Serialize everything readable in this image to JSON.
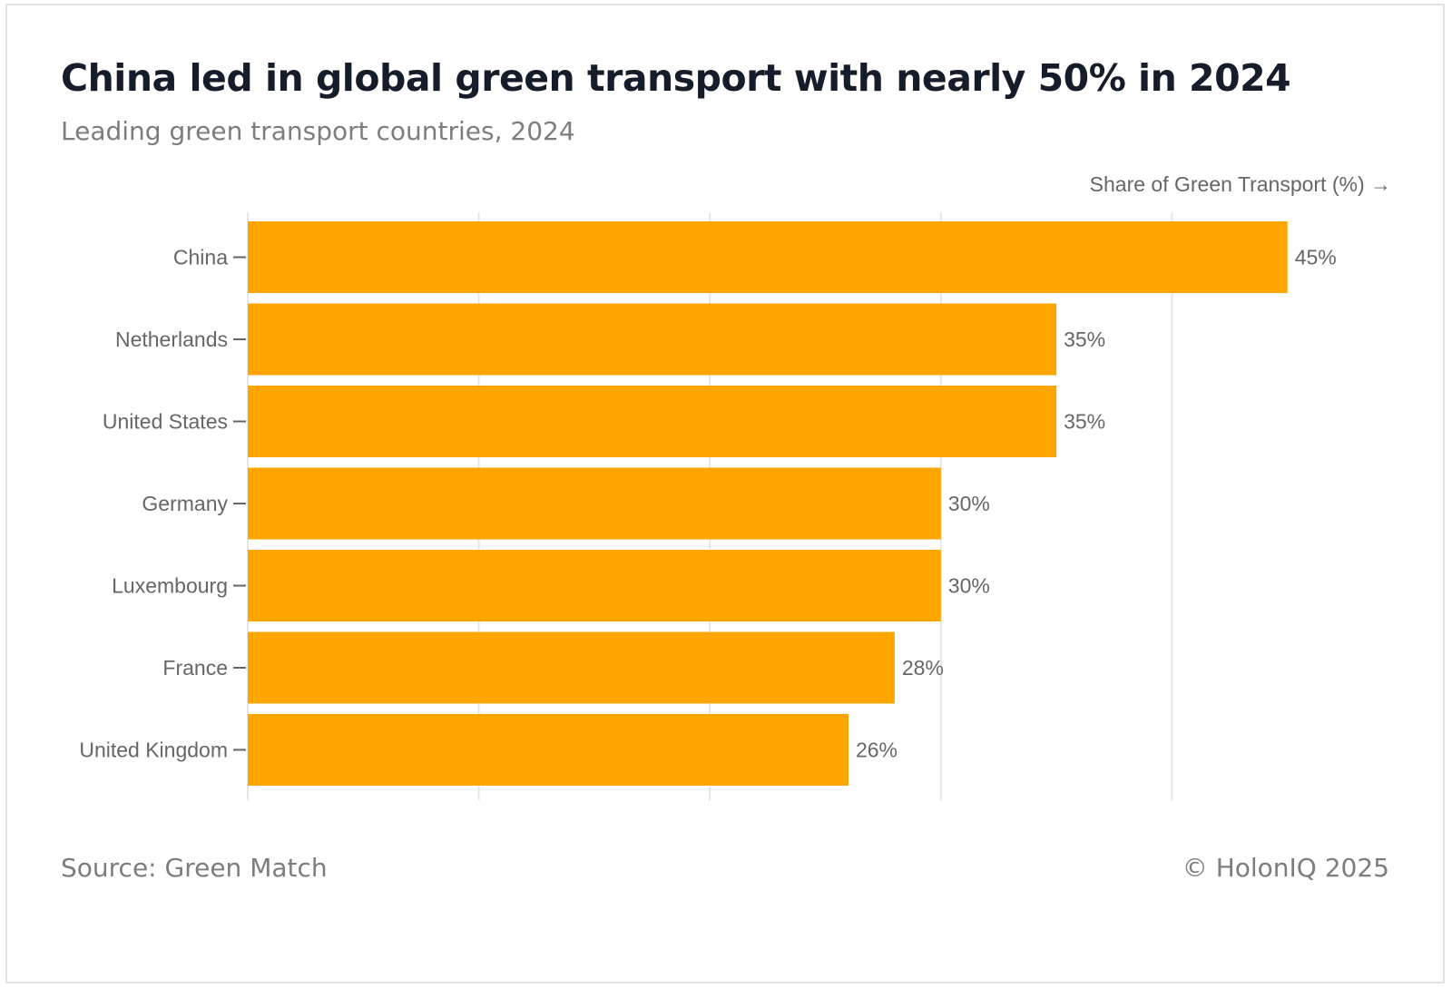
{
  "header": {
    "title": "China led in global green transport with nearly 50% in 2024",
    "subtitle": "Leading green transport countries, 2024"
  },
  "footer": {
    "source": "Source: Green Match",
    "copyright": "© HolonIQ 2025"
  },
  "colors": {
    "bar": "#FFA500",
    "grid": "#e6e6e6",
    "axis_text": "#666666",
    "tick": "#666666"
  },
  "chart_data": {
    "type": "bar",
    "orientation": "horizontal",
    "title": "China led in global green transport with nearly 50% in 2024",
    "subtitle": "Leading green transport countries, 2024",
    "xlabel": "Share of Green Transport (%) →",
    "ylabel": "",
    "categories": [
      "China",
      "Netherlands",
      "United States",
      "Germany",
      "Luxembourg",
      "France",
      "United Kingdom"
    ],
    "values": [
      45,
      35,
      35,
      30,
      30,
      28,
      26
    ],
    "data_labels": [
      "45%",
      "35%",
      "35%",
      "30%",
      "30%",
      "28%",
      "26%"
    ],
    "xlim": [
      0,
      50
    ],
    "gridlines_at": [
      0,
      10,
      20,
      30,
      40
    ],
    "x_tick_labels_shown": false,
    "grid": true,
    "legend": "none"
  }
}
